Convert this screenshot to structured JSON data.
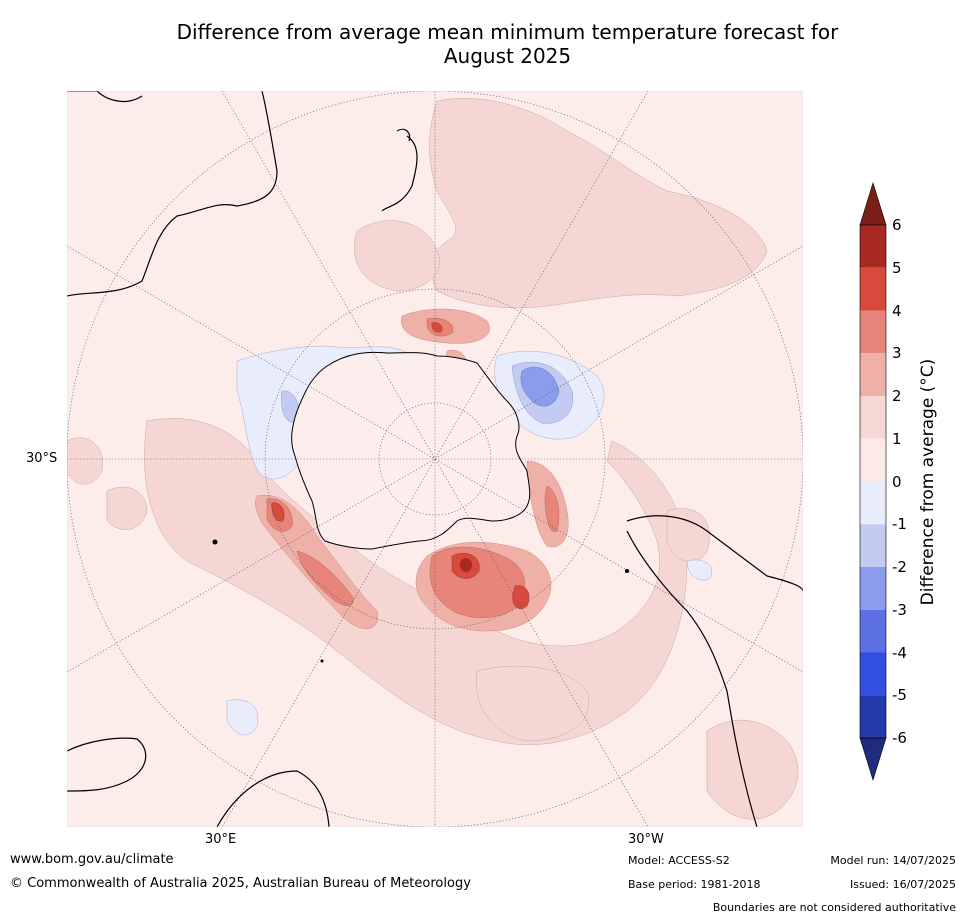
{
  "title": {
    "line1": "Difference from average mean minimum temperature forecast for",
    "line2": "August 2025"
  },
  "map": {
    "projection": "south-polar-stereographic",
    "lat_label": "30°S",
    "lon_label_left": "30°E",
    "lon_label_right": "30°W",
    "graticule": "dotted"
  },
  "colorbar": {
    "label": "Difference from average (°C)",
    "ticks": [
      "6",
      "5",
      "4",
      "3",
      "2",
      "1",
      "0",
      "-1",
      "-2",
      "-3",
      "-4",
      "-5",
      "-6"
    ],
    "colors": [
      "#a82822",
      "#d84a3c",
      "#e8857a",
      "#efb0a8",
      "#f6d7d4",
      "#fceae8",
      "#e9ecfa",
      "#c4cbf3",
      "#8c9cec",
      "#5c70e4",
      "#3150e0",
      "#243aad"
    ],
    "over_color": "#7a1f18",
    "under_color": "#1f2c7e"
  },
  "footer": {
    "website": "www.bom.gov.au/climate",
    "copyright": "© Commonwealth of Australia 2025, Australian Bureau of Meteorology",
    "model": "Model: ACCESS-S2",
    "base_period": "Base period: 1981-2018",
    "model_run": "Model run: 14/07/2025",
    "issued": "Issued: 16/07/2025",
    "disclaimer": "Boundaries are not considered authoritative"
  }
}
